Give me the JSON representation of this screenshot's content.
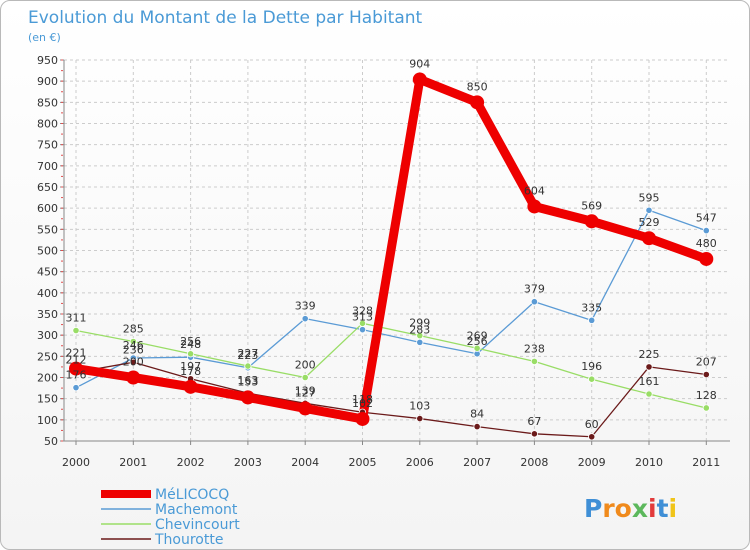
{
  "chart_data": {
    "type": "line",
    "title": "Evolution du Montant de la Dette par Habitant",
    "subtitle": "(en €)",
    "xlabel": "",
    "ylabel": "",
    "ylim": [
      50,
      950
    ],
    "yticks": [
      50,
      100,
      150,
      200,
      250,
      300,
      350,
      400,
      450,
      500,
      550,
      600,
      650,
      700,
      750,
      800,
      850,
      900,
      950
    ],
    "categories": [
      "2000",
      "2001",
      "2002",
      "2003",
      "2004",
      "2005",
      "2006",
      "2007",
      "2008",
      "2009",
      "2010",
      "2011"
    ],
    "series": [
      {
        "name": "Machemont",
        "color": "#5b9bd5",
        "values": [
          176,
          246,
          248,
          223,
          339,
          313,
          283,
          256,
          379,
          335,
          595,
          547
        ]
      },
      {
        "name": "Chevincourt",
        "color": "#99dd66",
        "values": [
          311,
          285,
          256,
          227,
          200,
          328,
          299,
          269,
          238,
          196,
          161,
          128
        ]
      },
      {
        "name": "Thourotte",
        "color": "#6b1a1a",
        "values": [
          212,
          236,
          197,
          163,
          139,
          118,
          103,
          84,
          67,
          60,
          225,
          207
        ]
      },
      {
        "name": "MéLICOCQ",
        "color": "#ee0000",
        "values": [
          221,
          200,
          178,
          153,
          127,
          102,
          904,
          850,
          604,
          569,
          529,
          480
        ]
      }
    ]
  },
  "brand": {
    "name": "Proxiti",
    "letters": [
      "P",
      "r",
      "o",
      "x",
      "i",
      "t",
      "i"
    ]
  }
}
